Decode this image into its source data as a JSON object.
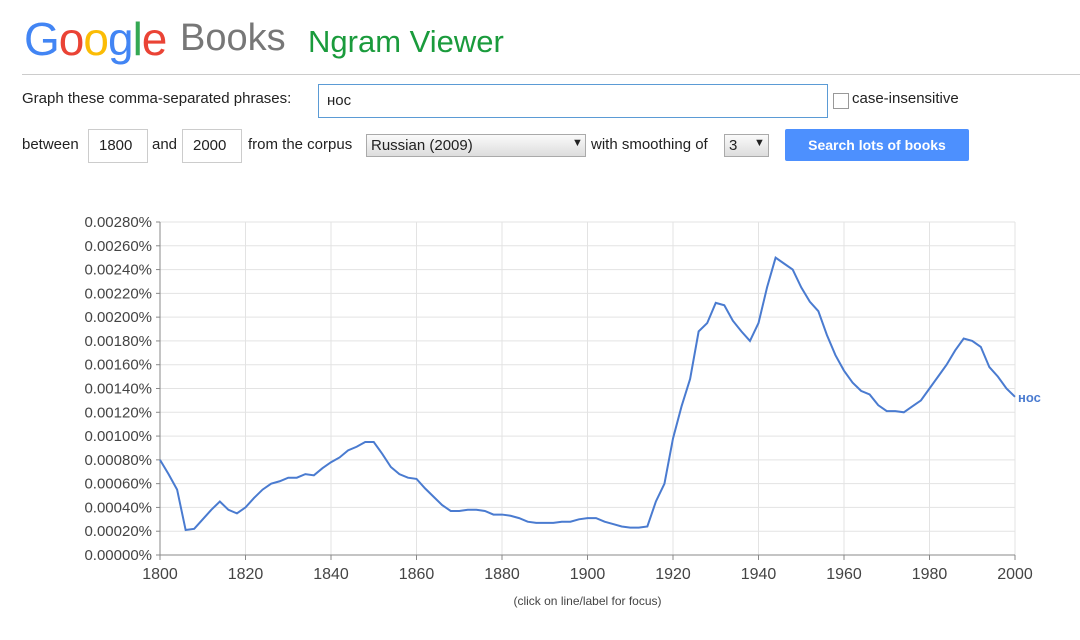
{
  "header": {
    "logo": "Google",
    "product": "Books",
    "title": "Ngram Viewer"
  },
  "form": {
    "phrases_label": "Graph these comma-separated phrases:",
    "phrases": "нос",
    "case_label": "case-insensitive",
    "between_label": "between",
    "start_year": "1800",
    "and_label": "and",
    "end_year": "2000",
    "corpus_label": "from the corpus",
    "corpus": "Russian (2009)",
    "smoothing_label": "with smoothing of",
    "smoothing": "3",
    "button": "Search lots of books"
  },
  "chart_data": {
    "type": "line",
    "note": "(click on line/label for focus)",
    "x": [
      1800,
      1802,
      1804,
      1806,
      1808,
      1810,
      1812,
      1814,
      1816,
      1818,
      1820,
      1822,
      1824,
      1826,
      1828,
      1830,
      1832,
      1834,
      1836,
      1838,
      1840,
      1842,
      1844,
      1846,
      1848,
      1850,
      1852,
      1854,
      1856,
      1858,
      1860,
      1862,
      1864,
      1866,
      1868,
      1870,
      1872,
      1874,
      1876,
      1878,
      1880,
      1882,
      1884,
      1886,
      1888,
      1890,
      1892,
      1894,
      1896,
      1898,
      1900,
      1902,
      1904,
      1906,
      1908,
      1910,
      1912,
      1914,
      1916,
      1918,
      1920,
      1922,
      1924,
      1926,
      1928,
      1930,
      1932,
      1934,
      1936,
      1938,
      1940,
      1942,
      1944,
      1946,
      1948,
      1950,
      1952,
      1954,
      1956,
      1958,
      1960,
      1962,
      1964,
      1966,
      1968,
      1970,
      1972,
      1974,
      1976,
      1978,
      1980,
      1982,
      1984,
      1986,
      1988,
      1990,
      1992,
      1994,
      1996,
      1998,
      2000
    ],
    "series": [
      {
        "name": "нос",
        "color": "#4a7bd0",
        "values": [
          0.0008,
          0.00068,
          0.00055,
          0.00021,
          0.00022,
          0.0003,
          0.00038,
          0.00045,
          0.00038,
          0.00035,
          0.0004,
          0.00048,
          0.00055,
          0.0006,
          0.00062,
          0.00065,
          0.00065,
          0.00068,
          0.00067,
          0.00073,
          0.00078,
          0.00082,
          0.00088,
          0.00091,
          0.00095,
          0.00095,
          0.00085,
          0.00074,
          0.00068,
          0.00065,
          0.00064,
          0.00056,
          0.00049,
          0.00042,
          0.00037,
          0.00037,
          0.00038,
          0.00038,
          0.00037,
          0.00034,
          0.00034,
          0.00033,
          0.00031,
          0.00028,
          0.00027,
          0.00027,
          0.00027,
          0.00028,
          0.00028,
          0.0003,
          0.00031,
          0.00031,
          0.00028,
          0.00026,
          0.00024,
          0.00023,
          0.00023,
          0.00024,
          0.00045,
          0.0006,
          0.00098,
          0.00125,
          0.00148,
          0.00188,
          0.00195,
          0.00212,
          0.0021,
          0.00197,
          0.00188,
          0.0018,
          0.00195,
          0.00225,
          0.0025,
          0.00245,
          0.0024,
          0.00225,
          0.00213,
          0.00205,
          0.00185,
          0.00168,
          0.00155,
          0.00145,
          0.00138,
          0.00135,
          0.00126,
          0.00121,
          0.00121,
          0.0012,
          0.00125,
          0.0013,
          0.0014,
          0.0015,
          0.0016,
          0.00172,
          0.00182,
          0.0018,
          0.00175,
          0.00158,
          0.0015,
          0.0014,
          0.00133
        ]
      }
    ],
    "xlim": [
      1800,
      2000
    ],
    "xticks": [
      1800,
      1820,
      1840,
      1860,
      1880,
      1900,
      1920,
      1940,
      1960,
      1980,
      2000
    ],
    "ylim": [
      0,
      0.0028
    ],
    "yticks": [
      {
        "value": 0,
        "label": "0.00000%"
      },
      {
        "value": 0.0002,
        "label": "0.00020%"
      },
      {
        "value": 0.0004,
        "label": "0.00040%"
      },
      {
        "value": 0.0006,
        "label": "0.00060%"
      },
      {
        "value": 0.0008,
        "label": "0.00080%"
      },
      {
        "value": 0.001,
        "label": "0.00100%"
      },
      {
        "value": 0.0012,
        "label": "0.00120%"
      },
      {
        "value": 0.0014,
        "label": "0.00140%"
      },
      {
        "value": 0.0016,
        "label": "0.00160%"
      },
      {
        "value": 0.0018,
        "label": "0.00180%"
      },
      {
        "value": 0.002,
        "label": "0.00200%"
      },
      {
        "value": 0.0022,
        "label": "0.00220%"
      },
      {
        "value": 0.0024,
        "label": "0.00240%"
      },
      {
        "value": 0.0026,
        "label": "0.00260%"
      },
      {
        "value": 0.0028,
        "label": "0.00280%"
      }
    ],
    "grid": true
  }
}
